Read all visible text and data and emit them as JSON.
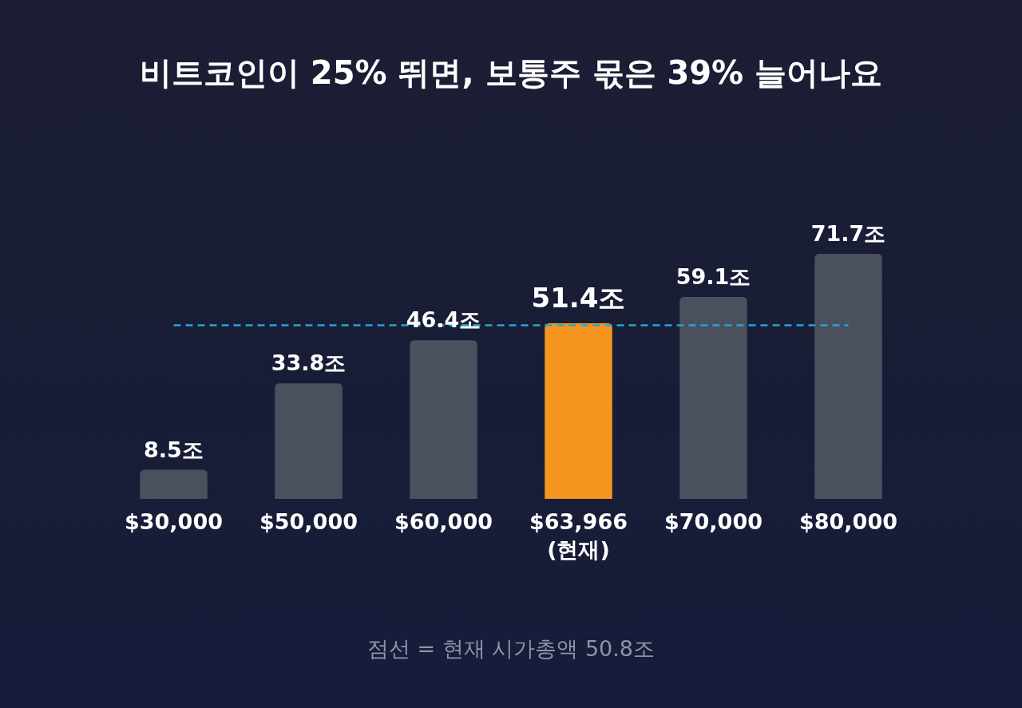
{
  "chart_data": {
    "type": "bar",
    "title": "비트코인이 25% 뛰면, 보통주 몫은 39% 늘어나요",
    "categories": [
      "$30,000",
      "$50,000",
      "$60,000",
      "$63,966\n(현재)",
      "$70,000",
      "$80,000"
    ],
    "values": [
      8.5,
      33.8,
      46.4,
      51.4,
      59.1,
      71.7
    ],
    "colors": [
      "#4b505f",
      "#4b505f",
      "#4b505f",
      "#f5951f",
      "#4b505f",
      "#4b505f"
    ],
    "value_labels": [
      "8.5조",
      "33.8조",
      "46.4조",
      "51.4조",
      "59.1조",
      "71.7조"
    ],
    "ref_lines": [
      {
        "axis": "y",
        "value": 50.8,
        "color": "#22a8d0",
        "line_style": "dashed"
      }
    ],
    "annotations": [
      "점선 = 현재 시가총액 50.8조"
    ]
  }
}
